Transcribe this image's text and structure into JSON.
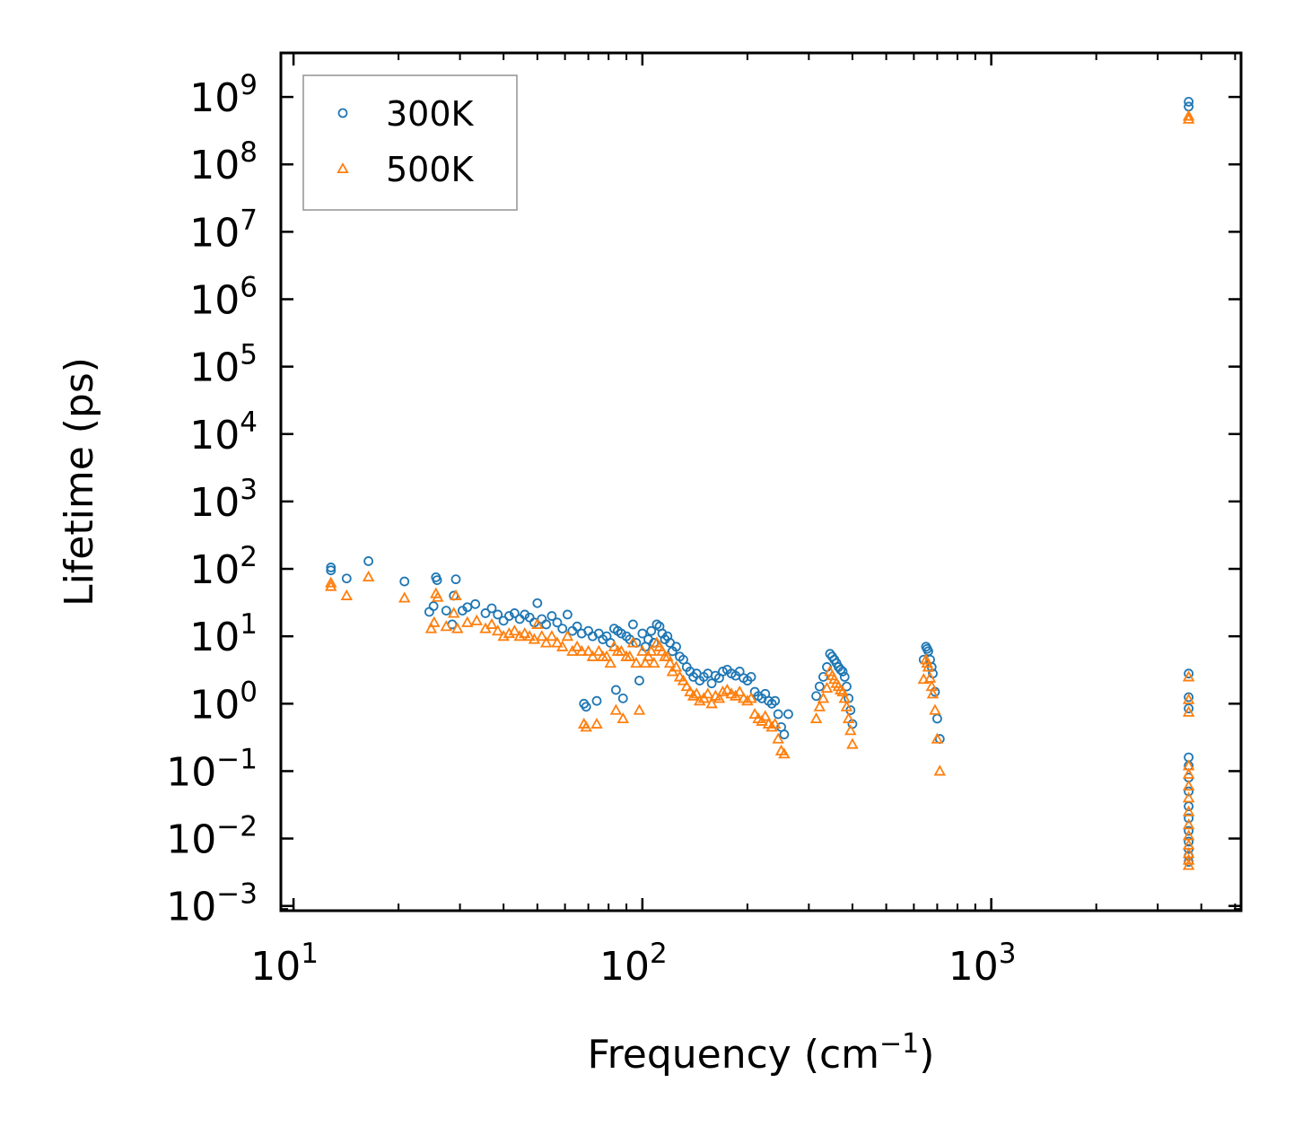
{
  "chart_data": {
    "type": "scatter",
    "title": "",
    "xlabel": "Frequency (cm",
    "xlabel_sup": "−1",
    "xlabel_end": ")",
    "ylabel": "Lifetime (ps)",
    "xscale": "log",
    "yscale": "log",
    "xlim": [
      9.2,
      5200
    ],
    "ylim": [
      0.00085,
      4500000000
    ],
    "x_ticks": [
      {
        "value": 10,
        "base": "10",
        "exp": "1"
      },
      {
        "value": 100,
        "base": "10",
        "exp": "2"
      },
      {
        "value": 1000,
        "base": "10",
        "exp": "3"
      }
    ],
    "y_ticks": [
      {
        "value": 0.001,
        "base": "10",
        "exp": "−3"
      },
      {
        "value": 0.01,
        "base": "10",
        "exp": "−2"
      },
      {
        "value": 0.1,
        "base": "10",
        "exp": "−1"
      },
      {
        "value": 1,
        "base": "10",
        "exp": "0"
      },
      {
        "value": 10,
        "base": "10",
        "exp": "1"
      },
      {
        "value": 100,
        "base": "10",
        "exp": "2"
      },
      {
        "value": 1000,
        "base": "10",
        "exp": "3"
      },
      {
        "value": 10000,
        "base": "10",
        "exp": "4"
      },
      {
        "value": 100000,
        "base": "10",
        "exp": "5"
      },
      {
        "value": 1000000,
        "base": "10",
        "exp": "6"
      },
      {
        "value": 10000000,
        "base": "10",
        "exp": "7"
      },
      {
        "value": 100000000,
        "base": "10",
        "exp": "8"
      },
      {
        "value": 1000000000,
        "base": "10",
        "exp": "9"
      }
    ],
    "legend_position": "top-left",
    "series": [
      {
        "name": "300K",
        "marker": "circle",
        "color": "#1f77b4",
        "points": [
          [
            12.8,
            105
          ],
          [
            12.8,
            95
          ],
          [
            14.2,
            72
          ],
          [
            16.4,
            130
          ],
          [
            20.8,
            65
          ],
          [
            24.5,
            23
          ],
          [
            25.2,
            28
          ],
          [
            25.6,
            75
          ],
          [
            25.8,
            68
          ],
          [
            27.4,
            24
          ],
          [
            28.8,
            40
          ],
          [
            29.2,
            70
          ],
          [
            28.5,
            15
          ],
          [
            30.5,
            24
          ],
          [
            31.5,
            27
          ],
          [
            33.2,
            30
          ],
          [
            35.5,
            22
          ],
          [
            37,
            26
          ],
          [
            38.5,
            21
          ],
          [
            40,
            17
          ],
          [
            41.5,
            20
          ],
          [
            43,
            22
          ],
          [
            44.5,
            18
          ],
          [
            46,
            21
          ],
          [
            47.5,
            19
          ],
          [
            49,
            16
          ],
          [
            50,
            31
          ],
          [
            51.5,
            18
          ],
          [
            53,
            15
          ],
          [
            55,
            20
          ],
          [
            57,
            16
          ],
          [
            59,
            13
          ],
          [
            61,
            21
          ],
          [
            63,
            12
          ],
          [
            65,
            14
          ],
          [
            67,
            11
          ],
          [
            68,
            1.0
          ],
          [
            69,
            0.9
          ],
          [
            70,
            12
          ],
          [
            72,
            10
          ],
          [
            74,
            1.1
          ],
          [
            75,
            11
          ],
          [
            77,
            9
          ],
          [
            79,
            10
          ],
          [
            81,
            8
          ],
          [
            83,
            13
          ],
          [
            84,
            1.6
          ],
          [
            85,
            12
          ],
          [
            87,
            11
          ],
          [
            88,
            1.2
          ],
          [
            90,
            10
          ],
          [
            92,
            9
          ],
          [
            94,
            15
          ],
          [
            96,
            8
          ],
          [
            98,
            2.2
          ],
          [
            100,
            11
          ],
          [
            102,
            7
          ],
          [
            104,
            9
          ],
          [
            106,
            12
          ],
          [
            108,
            8
          ],
          [
            110,
            15
          ],
          [
            112,
            14
          ],
          [
            114,
            11
          ],
          [
            116,
            9
          ],
          [
            118,
            10
          ],
          [
            120,
            8
          ],
          [
            122,
            6
          ],
          [
            125,
            7
          ],
          [
            128,
            5
          ],
          [
            131,
            4.5
          ],
          [
            134,
            3.5
          ],
          [
            137,
            3
          ],
          [
            140,
            2.5
          ],
          [
            143,
            2.8
          ],
          [
            146,
            2.2
          ],
          [
            150,
            2.5
          ],
          [
            154,
            2.8
          ],
          [
            158,
            2
          ],
          [
            162,
            2.6
          ],
          [
            166,
            2.4
          ],
          [
            170,
            3
          ],
          [
            175,
            3.2
          ],
          [
            180,
            2.8
          ],
          [
            185,
            2.6
          ],
          [
            190,
            3
          ],
          [
            195,
            2.4
          ],
          [
            200,
            2.2
          ],
          [
            205,
            2.5
          ],
          [
            210,
            1.5
          ],
          [
            215,
            1.3
          ],
          [
            220,
            1.2
          ],
          [
            225,
            1.4
          ],
          [
            230,
            1.1
          ],
          [
            235,
            1.0
          ],
          [
            240,
            1.1
          ],
          [
            245,
            0.7
          ],
          [
            250,
            0.45
          ],
          [
            255,
            0.35
          ],
          [
            262,
            0.7
          ],
          [
            315,
            1.3
          ],
          [
            322,
            1.8
          ],
          [
            330,
            2.5
          ],
          [
            338,
            3.5
          ],
          [
            345,
            5.5
          ],
          [
            350,
            5.0
          ],
          [
            355,
            4.5
          ],
          [
            360,
            4.0
          ],
          [
            365,
            3.5
          ],
          [
            370,
            3.2
          ],
          [
            375,
            3.0
          ],
          [
            380,
            2.5
          ],
          [
            385,
            1.8
          ],
          [
            390,
            1.2
          ],
          [
            395,
            0.8
          ],
          [
            400,
            0.5
          ],
          [
            640,
            4.5
          ],
          [
            650,
            7.0
          ],
          [
            655,
            6.5
          ],
          [
            660,
            6.0
          ],
          [
            668,
            4.5
          ],
          [
            675,
            3.5
          ],
          [
            680,
            2.8
          ],
          [
            690,
            1.5
          ],
          [
            700,
            0.6
          ],
          [
            712,
            0.3
          ],
          [
            3680,
            2.8
          ],
          [
            3680,
            1.25
          ],
          [
            3680,
            0.85
          ],
          [
            3680,
            0.16
          ],
          [
            3680,
            0.12
          ],
          [
            3680,
            0.08
          ],
          [
            3680,
            0.05
          ],
          [
            3680,
            0.03
          ],
          [
            3680,
            0.02
          ],
          [
            3680,
            0.013
          ],
          [
            3680,
            0.009
          ],
          [
            3680,
            0.007
          ],
          [
            3680,
            0.0055
          ],
          [
            3680,
            0.0045
          ],
          [
            3680,
            850000000
          ],
          [
            3680,
            720000000
          ]
        ]
      },
      {
        "name": "500K",
        "marker": "triangle",
        "color": "#ff7f0e",
        "points": [
          [
            12.8,
            62
          ],
          [
            12.8,
            55
          ],
          [
            14.2,
            40
          ],
          [
            16.4,
            76
          ],
          [
            20.8,
            37
          ],
          [
            24.8,
            13
          ],
          [
            25.3,
            16
          ],
          [
            25.6,
            43
          ],
          [
            25.9,
            38
          ],
          [
            27.4,
            14
          ],
          [
            28.8,
            22
          ],
          [
            29.2,
            40
          ],
          [
            29.5,
            13
          ],
          [
            31.5,
            16
          ],
          [
            33.5,
            17
          ],
          [
            35.5,
            13
          ],
          [
            37,
            15
          ],
          [
            38.5,
            12
          ],
          [
            40,
            10
          ],
          [
            41.5,
            11
          ],
          [
            43,
            12
          ],
          [
            44.5,
            10
          ],
          [
            46,
            11
          ],
          [
            47.5,
            10
          ],
          [
            49,
            9
          ],
          [
            50,
            15
          ],
          [
            51.5,
            10
          ],
          [
            53,
            8
          ],
          [
            55,
            10
          ],
          [
            57,
            8
          ],
          [
            59,
            7
          ],
          [
            61,
            10
          ],
          [
            63,
            6
          ],
          [
            65,
            7
          ],
          [
            67,
            6
          ],
          [
            68,
            0.5
          ],
          [
            69,
            0.45
          ],
          [
            70,
            6
          ],
          [
            72,
            5
          ],
          [
            74,
            0.5
          ],
          [
            75,
            6
          ],
          [
            77,
            5
          ],
          [
            79,
            5
          ],
          [
            81,
            4
          ],
          [
            83,
            7
          ],
          [
            84,
            0.8
          ],
          [
            85,
            6
          ],
          [
            87,
            6
          ],
          [
            88,
            0.6
          ],
          [
            90,
            5
          ],
          [
            92,
            5
          ],
          [
            94,
            8
          ],
          [
            96,
            4
          ],
          [
            98,
            0.8
          ],
          [
            100,
            6
          ],
          [
            102,
            4
          ],
          [
            104,
            5
          ],
          [
            106,
            6
          ],
          [
            108,
            4
          ],
          [
            110,
            8
          ],
          [
            112,
            7
          ],
          [
            114,
            6
          ],
          [
            116,
            5
          ],
          [
            118,
            5
          ],
          [
            120,
            4
          ],
          [
            122,
            3
          ],
          [
            125,
            3.5
          ],
          [
            128,
            2.5
          ],
          [
            131,
            2.2
          ],
          [
            134,
            1.8
          ],
          [
            137,
            1.5
          ],
          [
            140,
            1.3
          ],
          [
            143,
            1.4
          ],
          [
            146,
            1.1
          ],
          [
            150,
            1.2
          ],
          [
            154,
            1.4
          ],
          [
            158,
            1.0
          ],
          [
            162,
            1.3
          ],
          [
            166,
            1.2
          ],
          [
            170,
            1.5
          ],
          [
            175,
            1.6
          ],
          [
            180,
            1.4
          ],
          [
            185,
            1.3
          ],
          [
            190,
            1.5
          ],
          [
            195,
            1.2
          ],
          [
            200,
            1.1
          ],
          [
            205,
            1.2
          ],
          [
            210,
            0.7
          ],
          [
            215,
            0.6
          ],
          [
            220,
            0.55
          ],
          [
            225,
            0.65
          ],
          [
            230,
            0.5
          ],
          [
            235,
            0.45
          ],
          [
            240,
            0.5
          ],
          [
            245,
            0.3
          ],
          [
            250,
            0.2
          ],
          [
            255,
            0.18
          ],
          [
            315,
            0.6
          ],
          [
            322,
            0.9
          ],
          [
            330,
            1.2
          ],
          [
            338,
            1.7
          ],
          [
            345,
            3.0
          ],
          [
            350,
            2.6
          ],
          [
            355,
            2.3
          ],
          [
            360,
            2.0
          ],
          [
            365,
            1.8
          ],
          [
            370,
            1.6
          ],
          [
            375,
            1.5
          ],
          [
            380,
            1.2
          ],
          [
            385,
            0.9
          ],
          [
            390,
            0.6
          ],
          [
            395,
            0.4
          ],
          [
            400,
            0.25
          ],
          [
            640,
            2.3
          ],
          [
            650,
            4.5
          ],
          [
            655,
            4.0
          ],
          [
            660,
            3.5
          ],
          [
            668,
            2.4
          ],
          [
            675,
            1.8
          ],
          [
            680,
            1.4
          ],
          [
            690,
            0.8
          ],
          [
            700,
            0.3
          ],
          [
            712,
            0.1
          ],
          [
            3680,
            2.5
          ],
          [
            3680,
            1.15
          ],
          [
            3680,
            0.75
          ],
          [
            3680,
            0.12
          ],
          [
            3680,
            0.09
          ],
          [
            3680,
            0.06
          ],
          [
            3680,
            0.04
          ],
          [
            3680,
            0.025
          ],
          [
            3680,
            0.016
          ],
          [
            3680,
            0.011
          ],
          [
            3680,
            0.008
          ],
          [
            3680,
            0.006
          ],
          [
            3680,
            0.0048
          ],
          [
            3680,
            0.004
          ],
          [
            3680,
            520000000
          ],
          [
            3680,
            470000000
          ]
        ]
      }
    ]
  }
}
